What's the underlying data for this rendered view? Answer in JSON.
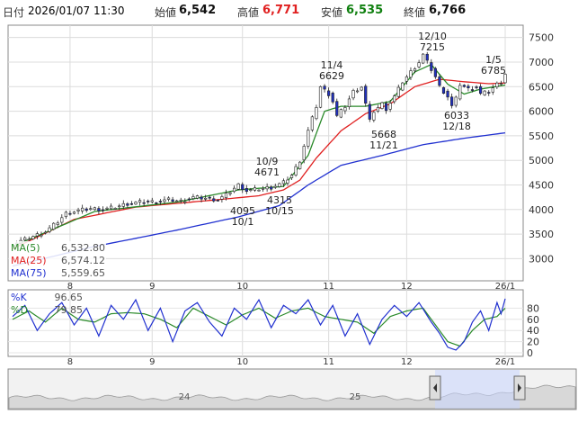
{
  "header": {
    "date_label": "日付",
    "datetime": "2026/01/07 11:30",
    "open_label": "始値",
    "open_value": "6,542",
    "high_label": "高値",
    "high_value": "6,771",
    "low_label": "安値",
    "low_value": "6,535",
    "close_label": "終値",
    "close_value": "6,766"
  },
  "colors": {
    "high": "#e02020",
    "low": "#108010",
    "ma5": "#2a8a2a",
    "ma25": "#e02020",
    "ma75": "#2030d0",
    "k": "#2030d0",
    "d": "#2a8a2a",
    "candle_down": "#2030c0"
  },
  "legend": {
    "ma5_label": "MA(5)",
    "ma5_value": "6,532.80",
    "ma25_label": "MA(25)",
    "ma25_value": "6,574.12",
    "ma75_label": "MA(75)",
    "ma75_value": "5,559.65",
    "k_label": "%K",
    "k_value": "96.65",
    "d_label": "%D",
    "d_value": "79.85"
  },
  "chart_data": {
    "type": "candlestick",
    "x_month_ticks": [
      "8",
      "9",
      "10",
      "11",
      "12",
      "26/1"
    ],
    "price_yticks": [
      "7500",
      "7000",
      "6500",
      "6000",
      "5500",
      "5000",
      "4500",
      "4000",
      "3500",
      "3000"
    ],
    "price_ylim": [
      2550,
      7750
    ],
    "stoch_yticks": [
      "80",
      "60",
      "40",
      "20",
      "0"
    ],
    "stoch_ylim": [
      0,
      100
    ],
    "navigator_labels": [
      "24",
      "25"
    ],
    "annotations": [
      {
        "date": "10/9",
        "value": "4671"
      },
      {
        "date": "10/1",
        "value": "4095"
      },
      {
        "date": "10/15",
        "value": "4315"
      },
      {
        "date": "11/4",
        "value": "6629"
      },
      {
        "date": "11/21",
        "value": "5668"
      },
      {
        "date": "12/10",
        "value": "7215"
      },
      {
        "date": "12/18",
        "value": "6033"
      },
      {
        "date": "1/5",
        "value": "6785"
      }
    ],
    "close_anchor_series": [
      [
        0,
        3300
      ],
      [
        4,
        3420
      ],
      [
        8,
        3550
      ],
      [
        11,
        3750
      ],
      [
        13,
        3920
      ],
      [
        16,
        3980
      ],
      [
        19,
        4020
      ],
      [
        22,
        4000
      ],
      [
        25,
        4050
      ],
      [
        28,
        4120
      ],
      [
        31,
        4150
      ],
      [
        35,
        4160
      ],
      [
        38,
        4200
      ],
      [
        41,
        4170
      ],
      [
        44,
        4250
      ],
      [
        47,
        4230
      ],
      [
        50,
        4200
      ],
      [
        52,
        4300
      ],
      [
        55,
        4500
      ],
      [
        57,
        4380
      ],
      [
        60,
        4420
      ],
      [
        63,
        4450
      ],
      [
        66,
        4550
      ],
      [
        68,
        4700
      ],
      [
        70,
        5000
      ],
      [
        72,
        5600
      ],
      [
        74,
        6100
      ],
      [
        75,
        6500
      ],
      [
        77,
        6350
      ],
      [
        78,
        6200
      ],
      [
        79,
        5900
      ],
      [
        81,
        6100
      ],
      [
        83,
        6400
      ],
      [
        85,
        6500
      ],
      [
        86,
        6150
      ],
      [
        87,
        5800
      ],
      [
        88,
        6000
      ],
      [
        90,
        6150
      ],
      [
        91,
        6050
      ],
      [
        93,
        6300
      ],
      [
        95,
        6600
      ],
      [
        97,
        6800
      ],
      [
        98,
        6900
      ],
      [
        99,
        7000
      ],
      [
        100,
        7150
      ],
      [
        101,
        7000
      ],
      [
        103,
        6700
      ],
      [
        104,
        6500
      ],
      [
        106,
        6300
      ],
      [
        107,
        6100
      ],
      [
        108,
        6250
      ],
      [
        109,
        6550
      ],
      [
        111,
        6450
      ],
      [
        113,
        6500
      ],
      [
        114,
        6350
      ],
      [
        116,
        6400
      ],
      [
        118,
        6550
      ],
      [
        119,
        6600
      ],
      [
        120,
        6766
      ]
    ],
    "ma5_anchor_series": [
      [
        0,
        3250
      ],
      [
        20,
        3960
      ],
      [
        40,
        4150
      ],
      [
        55,
        4400
      ],
      [
        66,
        4470
      ],
      [
        72,
        5100
      ],
      [
        76,
        6000
      ],
      [
        80,
        6100
      ],
      [
        86,
        6100
      ],
      [
        92,
        6200
      ],
      [
        98,
        6800
      ],
      [
        102,
        6950
      ],
      [
        106,
        6550
      ],
      [
        110,
        6350
      ],
      [
        114,
        6450
      ],
      [
        120,
        6533
      ]
    ],
    "ma25_anchor_series": [
      [
        0,
        3200
      ],
      [
        15,
        3800
      ],
      [
        30,
        4050
      ],
      [
        50,
        4200
      ],
      [
        60,
        4280
      ],
      [
        66,
        4400
      ],
      [
        70,
        4600
      ],
      [
        74,
        5050
      ],
      [
        80,
        5600
      ],
      [
        86,
        5950
      ],
      [
        92,
        6150
      ],
      [
        98,
        6500
      ],
      [
        104,
        6650
      ],
      [
        110,
        6600
      ],
      [
        116,
        6560
      ],
      [
        120,
        6574
      ]
    ],
    "ma75_anchor_series": [
      [
        0,
        2850
      ],
      [
        20,
        3250
      ],
      [
        40,
        3580
      ],
      [
        55,
        3850
      ],
      [
        65,
        4080
      ],
      [
        72,
        4500
      ],
      [
        80,
        4900
      ],
      [
        90,
        5100
      ],
      [
        100,
        5320
      ],
      [
        110,
        5450
      ],
      [
        120,
        5560
      ]
    ],
    "k_anchor_series": [
      [
        0,
        65
      ],
      [
        3,
        85
      ],
      [
        6,
        40
      ],
      [
        9,
        70
      ],
      [
        12,
        90
      ],
      [
        15,
        50
      ],
      [
        18,
        80
      ],
      [
        21,
        30
      ],
      [
        24,
        85
      ],
      [
        27,
        60
      ],
      [
        30,
        95
      ],
      [
        33,
        40
      ],
      [
        36,
        80
      ],
      [
        39,
        20
      ],
      [
        42,
        75
      ],
      [
        45,
        90
      ],
      [
        48,
        55
      ],
      [
        51,
        30
      ],
      [
        54,
        80
      ],
      [
        57,
        60
      ],
      [
        60,
        95
      ],
      [
        63,
        45
      ],
      [
        66,
        85
      ],
      [
        69,
        70
      ],
      [
        72,
        95
      ],
      [
        75,
        50
      ],
      [
        78,
        85
      ],
      [
        81,
        30
      ],
      [
        84,
        70
      ],
      [
        87,
        15
      ],
      [
        90,
        60
      ],
      [
        93,
        85
      ],
      [
        96,
        65
      ],
      [
        99,
        90
      ],
      [
        102,
        55
      ],
      [
        104,
        35
      ],
      [
        106,
        10
      ],
      [
        108,
        5
      ],
      [
        110,
        20
      ],
      [
        112,
        55
      ],
      [
        114,
        75
      ],
      [
        116,
        40
      ],
      [
        118,
        90
      ],
      [
        119,
        70
      ],
      [
        120,
        97
      ]
    ],
    "d_anchor_series": [
      [
        0,
        60
      ],
      [
        4,
        75
      ],
      [
        8,
        55
      ],
      [
        12,
        80
      ],
      [
        16,
        60
      ],
      [
        20,
        55
      ],
      [
        24,
        70
      ],
      [
        28,
        72
      ],
      [
        32,
        70
      ],
      [
        36,
        60
      ],
      [
        40,
        45
      ],
      [
        44,
        80
      ],
      [
        48,
        65
      ],
      [
        52,
        50
      ],
      [
        56,
        68
      ],
      [
        60,
        80
      ],
      [
        64,
        62
      ],
      [
        68,
        75
      ],
      [
        72,
        80
      ],
      [
        76,
        65
      ],
      [
        80,
        60
      ],
      [
        84,
        55
      ],
      [
        88,
        35
      ],
      [
        92,
        65
      ],
      [
        96,
        75
      ],
      [
        100,
        80
      ],
      [
        103,
        50
      ],
      [
        106,
        20
      ],
      [
        109,
        12
      ],
      [
        112,
        40
      ],
      [
        115,
        60
      ],
      [
        118,
        65
      ],
      [
        120,
        80
      ]
    ]
  }
}
